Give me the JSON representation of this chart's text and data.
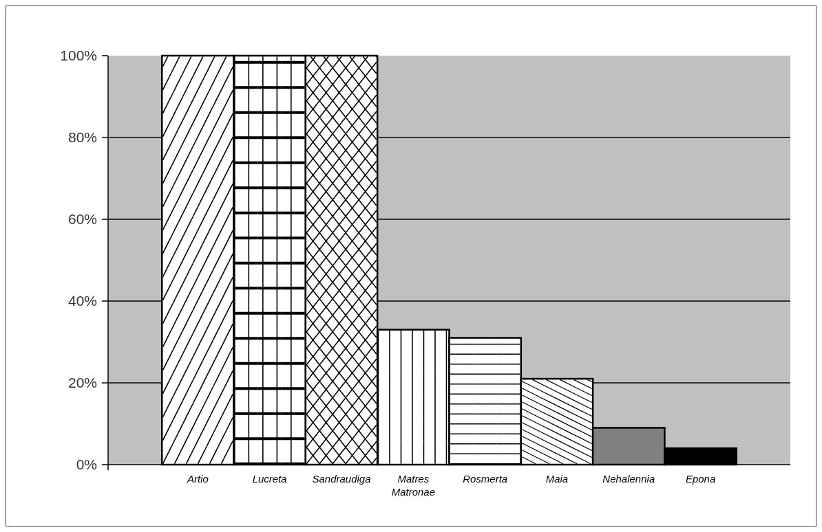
{
  "chart_data": {
    "type": "bar",
    "categories": [
      "Artio",
      "Lucreta",
      "Sandraudiga",
      "Matres Matronae",
      "Rosmerta",
      "Maia",
      "Nehalennia",
      "Epona"
    ],
    "values": [
      100,
      100,
      100,
      33,
      31,
      21,
      9,
      4
    ],
    "colors": [
      "#ffffff",
      "#ffffff",
      "#ffffff",
      "#ffffff",
      "#ffffff",
      "#ffffff",
      "#808080",
      "#000000"
    ],
    "ylim": [
      0,
      100
    ],
    "yticks": [
      {
        "value": 0,
        "label": "0%"
      },
      {
        "value": 20,
        "label": "20%"
      },
      {
        "value": 40,
        "label": "40%"
      },
      {
        "value": 60,
        "label": "60%"
      },
      {
        "value": 80,
        "label": "80%"
      },
      {
        "value": 100,
        "label": "100%"
      }
    ],
    "grid": "y"
  }
}
